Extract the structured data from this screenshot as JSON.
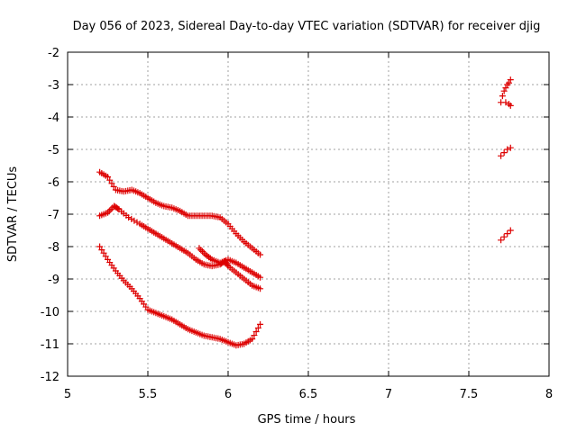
{
  "chart_data": {
    "type": "scatter",
    "title": "Day 056 of 2023, Sidereal Day-to-day VTEC variation (SDTVAR) for receiver djig",
    "xlabel": "GPS time / hours",
    "ylabel": "SDTVAR / TECUs",
    "xlim": [
      5,
      8
    ],
    "ylim": [
      -12,
      -2
    ],
    "x_ticks": [
      5,
      5.5,
      6,
      6.5,
      7,
      7.5,
      8
    ],
    "x_tick_labels": [
      "5",
      "5.5",
      "6",
      "6.5",
      "7",
      "7.5",
      "8"
    ],
    "y_ticks": [
      -12,
      -11,
      -10,
      -9,
      -8,
      -7,
      -6,
      -5,
      -4,
      -3,
      -2
    ],
    "y_tick_labels": [
      "-12",
      "-11",
      "-10",
      "-9",
      "-8",
      "-7",
      "-6",
      "-5",
      "-4",
      "-3",
      "-2"
    ],
    "grid": true,
    "marker": "+",
    "marker_color": "#dd0000",
    "series": [
      {
        "name": "track-upper",
        "points": [
          [
            5.2,
            -5.7
          ],
          [
            5.25,
            -5.85
          ],
          [
            5.3,
            -6.25
          ],
          [
            5.35,
            -6.3
          ],
          [
            5.4,
            -6.25
          ],
          [
            5.45,
            -6.35
          ],
          [
            5.5,
            -6.5
          ],
          [
            5.55,
            -6.65
          ],
          [
            5.6,
            -6.75
          ],
          [
            5.65,
            -6.8
          ],
          [
            5.7,
            -6.9
          ],
          [
            5.75,
            -7.05
          ],
          [
            5.8,
            -7.05
          ],
          [
            5.85,
            -7.05
          ],
          [
            5.9,
            -7.05
          ],
          [
            5.95,
            -7.1
          ],
          [
            6.0,
            -7.3
          ],
          [
            6.05,
            -7.6
          ],
          [
            6.1,
            -7.85
          ],
          [
            6.15,
            -8.05
          ],
          [
            6.2,
            -8.25
          ]
        ]
      },
      {
        "name": "track-middle",
        "points": [
          [
            5.2,
            -7.05
          ],
          [
            5.25,
            -6.95
          ],
          [
            5.29,
            -6.75
          ],
          [
            5.32,
            -6.85
          ],
          [
            5.38,
            -7.1
          ],
          [
            5.45,
            -7.3
          ],
          [
            5.5,
            -7.45
          ],
          [
            5.55,
            -7.6
          ],
          [
            5.6,
            -7.75
          ],
          [
            5.65,
            -7.9
          ],
          [
            5.7,
            -8.05
          ],
          [
            5.75,
            -8.2
          ],
          [
            5.8,
            -8.4
          ],
          [
            5.85,
            -8.55
          ],
          [
            5.9,
            -8.6
          ],
          [
            5.95,
            -8.55
          ],
          [
            5.98,
            -8.45
          ],
          [
            6.0,
            -8.6
          ],
          [
            6.05,
            -8.8
          ],
          [
            6.1,
            -9.0
          ],
          [
            6.15,
            -9.2
          ],
          [
            6.2,
            -9.3
          ]
        ]
      },
      {
        "name": "track-segment",
        "points": [
          [
            5.82,
            -8.05
          ],
          [
            5.86,
            -8.25
          ],
          [
            5.9,
            -8.4
          ],
          [
            5.95,
            -8.5
          ],
          [
            6.0,
            -8.4
          ],
          [
            6.05,
            -8.5
          ],
          [
            6.1,
            -8.65
          ],
          [
            6.15,
            -8.8
          ],
          [
            6.2,
            -8.95
          ]
        ]
      },
      {
        "name": "track-lower",
        "points": [
          [
            5.2,
            -8.0
          ],
          [
            5.25,
            -8.4
          ],
          [
            5.3,
            -8.75
          ],
          [
            5.35,
            -9.05
          ],
          [
            5.4,
            -9.3
          ],
          [
            5.45,
            -9.6
          ],
          [
            5.5,
            -9.95
          ],
          [
            5.55,
            -10.05
          ],
          [
            5.6,
            -10.15
          ],
          [
            5.65,
            -10.25
          ],
          [
            5.7,
            -10.4
          ],
          [
            5.75,
            -10.55
          ],
          [
            5.8,
            -10.65
          ],
          [
            5.85,
            -10.75
          ],
          [
            5.9,
            -10.8
          ],
          [
            5.95,
            -10.85
          ],
          [
            6.0,
            -10.95
          ],
          [
            6.05,
            -11.05
          ],
          [
            6.1,
            -11.0
          ],
          [
            6.15,
            -10.85
          ],
          [
            6.2,
            -10.4
          ]
        ]
      },
      {
        "name": "late-cluster-top",
        "points": [
          [
            7.7,
            -3.55
          ],
          [
            7.71,
            -3.35
          ],
          [
            7.72,
            -3.2
          ],
          [
            7.73,
            -3.1
          ],
          [
            7.74,
            -3.0
          ],
          [
            7.75,
            -2.95
          ],
          [
            7.76,
            -2.85
          ],
          [
            7.73,
            -3.55
          ],
          [
            7.75,
            -3.6
          ],
          [
            7.76,
            -3.65
          ]
        ]
      },
      {
        "name": "late-cluster-mid",
        "points": [
          [
            7.7,
            -5.2
          ],
          [
            7.72,
            -5.1
          ],
          [
            7.74,
            -5.0
          ],
          [
            7.76,
            -4.95
          ]
        ]
      },
      {
        "name": "late-cluster-low",
        "points": [
          [
            7.7,
            -7.8
          ],
          [
            7.72,
            -7.7
          ],
          [
            7.74,
            -7.6
          ],
          [
            7.76,
            -7.5
          ]
        ]
      }
    ]
  }
}
